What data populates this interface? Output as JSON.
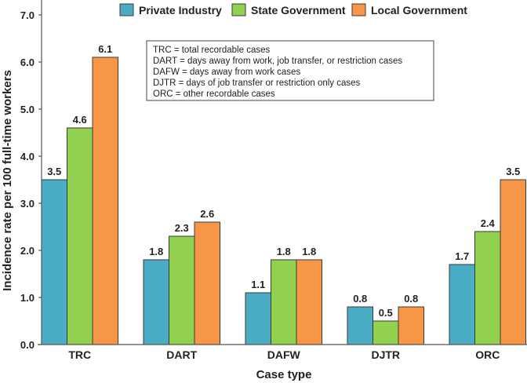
{
  "chart_data": {
    "type": "bar",
    "title": "",
    "xlabel": "Case type",
    "ylabel": "Incidence rate per 100 full-time workers",
    "ylim": [
      0,
      7.0
    ],
    "yticks": [
      "0.0",
      "1.0",
      "2.0",
      "3.0",
      "4.0",
      "5.0",
      "6.0",
      "7.0"
    ],
    "grid": false,
    "legend_position": "top-center",
    "categories": [
      "TRC",
      "DART",
      "DAFW",
      "DJTR",
      "ORC"
    ],
    "series": [
      {
        "name": "Private Industry",
        "color": "#4BACC6",
        "values": [
          3.5,
          1.8,
          1.1,
          0.8,
          1.7
        ]
      },
      {
        "name": "State Government",
        "color": "#92D050",
        "values": [
          4.6,
          2.3,
          1.8,
          0.5,
          2.4
        ]
      },
      {
        "name": "Local Government",
        "color": "#F79646",
        "values": [
          6.1,
          2.6,
          1.8,
          0.8,
          3.5
        ]
      }
    ],
    "annotation_lines": [
      "TRC = total recordable cases",
      "DART = days away from work, job transfer, or restriction cases",
      "DAFW = days away from work cases",
      "DJTR = days of job transfer or restriction only cases",
      "ORC = other recordable cases"
    ]
  }
}
